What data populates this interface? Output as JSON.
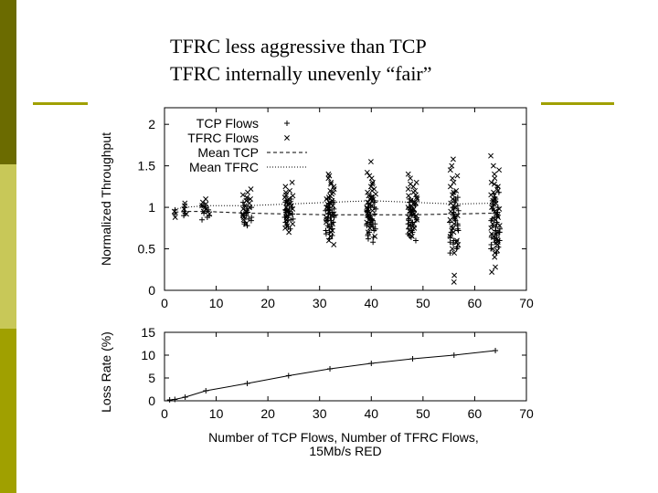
{
  "slide": {
    "title_line1": "TFRC less aggressive than TCP",
    "title_line2": "TFRC internally unevenly “fair”",
    "accent_color": "#a0a000"
  },
  "chart_data": [
    {
      "type": "scatter",
      "ylabel": "Normalized Throughput",
      "xlim": [
        0,
        70
      ],
      "ylim": [
        0,
        2.2
      ],
      "x_ticks": [
        0,
        10,
        20,
        30,
        40,
        50,
        60,
        70
      ],
      "y_ticks": [
        0,
        0.5,
        1,
        1.5,
        2
      ],
      "legend_position": "top-left",
      "flow_counts": [
        2,
        4,
        8,
        16,
        24,
        32,
        40,
        48,
        56,
        64
      ],
      "series": [
        {
          "name": "TCP Flows",
          "marker": "+",
          "points_per_group": [
            {
              "x": 2,
              "y": [
                0.92,
                0.97
              ]
            },
            {
              "x": 4,
              "y": [
                0.9,
                0.95,
                1.0,
                0.93
              ]
            },
            {
              "x": 8,
              "y": [
                0.85,
                0.9,
                0.95,
                1.0,
                0.93,
                0.97,
                0.88,
                1.02
              ]
            },
            {
              "x": 16,
              "y": [
                0.78,
                0.82,
                0.86,
                0.9,
                0.94,
                0.98,
                1.02,
                1.06,
                0.84,
                0.88,
                0.92,
                0.96,
                1.0,
                0.8,
                0.9,
                1.1
              ]
            },
            {
              "x": 24,
              "y": [
                0.74,
                0.78,
                0.82,
                0.86,
                0.9,
                0.94,
                0.98,
                1.02,
                1.06,
                1.1,
                0.8,
                0.84,
                0.88,
                0.92,
                0.96,
                1.0,
                0.76,
                0.9,
                0.95,
                1.05,
                0.85,
                0.93,
                0.97,
                1.08
              ]
            },
            {
              "x": 32,
              "y": [
                0.62,
                0.68,
                0.72,
                0.76,
                0.8,
                0.84,
                0.88,
                0.92,
                0.96,
                1.0,
                1.04,
                1.08,
                1.12,
                0.7,
                0.78,
                0.86,
                0.94,
                1.02,
                1.1,
                0.74,
                0.82,
                0.9,
                0.98,
                1.06,
                0.66,
                0.8,
                0.88,
                0.96,
                1.0,
                0.92,
                0.84,
                1.05
              ]
            },
            {
              "x": 40,
              "y": [
                0.58,
                0.64,
                0.7,
                0.74,
                0.78,
                0.82,
                0.86,
                0.9,
                0.94,
                0.98,
                1.02,
                1.06,
                1.1,
                1.14,
                0.66,
                0.72,
                0.8,
                0.88,
                0.96,
                1.04,
                1.12,
                0.76,
                0.84,
                0.92,
                1.0,
                1.08,
                0.62,
                0.8,
                0.9,
                0.95,
                0.85,
                1.0
              ]
            },
            {
              "x": 48,
              "y": [
                0.6,
                0.66,
                0.7,
                0.74,
                0.78,
                0.82,
                0.86,
                0.9,
                0.94,
                0.98,
                1.02,
                1.06,
                1.1,
                0.68,
                0.76,
                0.84,
                0.92,
                1.0,
                1.08,
                0.72,
                0.8,
                0.88,
                0.96,
                1.04,
                0.64,
                0.85,
                0.9,
                0.95,
                1.0,
                0.82
              ]
            },
            {
              "x": 56,
              "y": [
                0.45,
                0.52,
                0.58,
                0.64,
                0.7,
                0.76,
                0.82,
                0.88,
                0.94,
                1.0,
                1.06,
                1.12,
                1.18,
                0.56,
                0.66,
                0.74,
                0.84,
                0.92,
                1.02,
                1.1,
                0.6,
                0.72,
                0.8,
                0.9,
                0.98,
                1.08,
                0.5,
                0.78,
                0.86,
                0.96
              ]
            },
            {
              "x": 64,
              "y": [
                0.45,
                0.52,
                0.58,
                0.64,
                0.7,
                0.76,
                0.82,
                0.88,
                0.94,
                1.0,
                1.06,
                1.12,
                1.18,
                1.24,
                0.55,
                0.62,
                0.68,
                0.74,
                0.8,
                0.86,
                0.92,
                0.98,
                1.04,
                1.1,
                1.16,
                0.5,
                0.6,
                0.72,
                0.84,
                0.96,
                1.08,
                0.66,
                0.78,
                0.9,
                1.02,
                0.7
              ]
            }
          ]
        },
        {
          "name": "TFRC Flows",
          "marker": "x",
          "points_per_group": [
            {
              "x": 2,
              "y": [
                0.88,
                0.95
              ]
            },
            {
              "x": 4,
              "y": [
                0.92,
                0.98,
                1.02,
                1.05
              ]
            },
            {
              "x": 8,
              "y": [
                0.92,
                0.98,
                1.02,
                1.06,
                1.1,
                0.95,
                1.0,
                1.04
              ]
            },
            {
              "x": 16,
              "y": [
                0.8,
                0.9,
                0.98,
                1.05,
                1.12,
                1.18,
                1.22,
                0.85,
                0.95,
                1.02,
                1.08,
                1.15,
                0.88,
                1.0,
                1.1,
                0.92
              ]
            },
            {
              "x": 24,
              "y": [
                0.7,
                0.85,
                0.95,
                1.0,
                1.05,
                1.1,
                1.15,
                1.2,
                1.3,
                0.8,
                0.9,
                0.98,
                1.02,
                1.08,
                1.12,
                1.18,
                0.75,
                0.92,
                1.04,
                1.14,
                0.88,
                0.96,
                1.06,
                1.25
              ]
            },
            {
              "x": 32,
              "y": [
                0.55,
                0.7,
                0.8,
                0.9,
                0.98,
                1.04,
                1.1,
                1.16,
                1.22,
                1.28,
                1.35,
                1.4,
                0.65,
                0.75,
                0.85,
                0.95,
                1.02,
                1.08,
                1.14,
                1.2,
                1.3,
                0.6,
                0.88,
                1.0,
                1.12,
                1.25,
                0.72,
                0.92,
                1.06,
                1.18,
                1.38,
                0.82
              ]
            },
            {
              "x": 40,
              "y": [
                0.65,
                0.75,
                0.85,
                0.92,
                0.98,
                1.04,
                1.1,
                1.16,
                1.22,
                1.28,
                1.35,
                1.42,
                1.55,
                0.7,
                0.8,
                0.88,
                0.95,
                1.02,
                1.08,
                1.14,
                1.2,
                1.3,
                0.78,
                0.9,
                1.0,
                1.12,
                1.25,
                0.82,
                0.96,
                1.06,
                1.18,
                1.38
              ]
            },
            {
              "x": 48,
              "y": [
                0.65,
                0.75,
                0.85,
                0.9,
                0.95,
                1.0,
                1.05,
                1.1,
                1.15,
                1.2,
                1.25,
                1.3,
                1.4,
                0.7,
                0.8,
                0.88,
                0.98,
                1.02,
                1.08,
                1.12,
                1.18,
                0.72,
                0.92,
                1.06,
                1.22,
                1.35,
                0.78,
                0.96,
                1.14,
                1.28
              ]
            },
            {
              "x": 56,
              "y": [
                0.1,
                0.18,
                0.45,
                0.55,
                0.65,
                0.75,
                0.85,
                0.95,
                1.05,
                1.15,
                1.25,
                1.35,
                1.45,
                1.58,
                0.5,
                0.6,
                0.7,
                0.8,
                0.9,
                1.0,
                1.1,
                1.2,
                1.3,
                1.5,
                0.58,
                0.72,
                0.88,
                1.02,
                1.18,
                1.38
              ]
            },
            {
              "x": 64,
              "y": [
                0.22,
                0.28,
                0.4,
                0.5,
                0.6,
                0.7,
                0.8,
                0.9,
                1.0,
                1.1,
                1.2,
                1.3,
                1.4,
                1.5,
                1.62,
                0.45,
                0.55,
                0.65,
                0.75,
                0.85,
                0.95,
                1.05,
                1.15,
                1.25,
                1.35,
                0.48,
                0.58,
                0.68,
                0.78,
                0.88,
                0.98,
                1.08,
                1.18,
                1.28,
                1.45,
                0.62
              ]
            }
          ]
        },
        {
          "name": "Mean TCP",
          "style": "dashed",
          "x": [
            2,
            4,
            8,
            16,
            24,
            32,
            40,
            48,
            56,
            64
          ],
          "y": [
            0.94,
            0.95,
            0.95,
            0.93,
            0.92,
            0.91,
            0.91,
            0.91,
            0.92,
            0.93
          ]
        },
        {
          "name": "Mean TFRC",
          "style": "dotted",
          "x": [
            2,
            4,
            8,
            16,
            24,
            32,
            40,
            48,
            56,
            64
          ],
          "y": [
            0.98,
            1.0,
            1.02,
            1.02,
            1.04,
            1.06,
            1.08,
            1.06,
            1.04,
            1.05
          ]
        }
      ]
    },
    {
      "type": "line",
      "ylabel": "Loss Rate (%)",
      "xlabel_line1": "Number of TCP Flows, Number of TFRC Flows,",
      "xlabel_line2": "15Mb/s RED",
      "xlim": [
        0,
        70
      ],
      "ylim": [
        0,
        15
      ],
      "x_ticks": [
        0,
        10,
        20,
        30,
        40,
        50,
        60,
        70
      ],
      "y_ticks": [
        0,
        5,
        10,
        15
      ],
      "marker": "+",
      "series": [
        {
          "x": [
            1,
            2,
            4,
            8,
            16,
            24,
            32,
            40,
            48,
            56,
            64
          ],
          "y": [
            0.2,
            0.3,
            0.8,
            2.2,
            3.8,
            5.5,
            7.0,
            8.2,
            9.2,
            10.0,
            11.0
          ]
        }
      ]
    }
  ]
}
